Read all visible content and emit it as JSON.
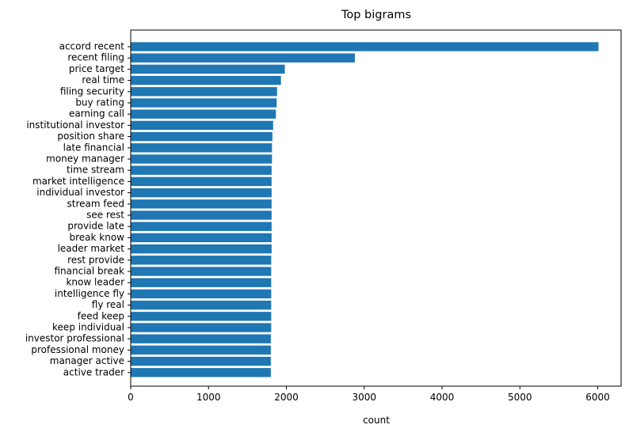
{
  "chart_data": {
    "type": "bar",
    "orientation": "horizontal",
    "title": "Top bigrams",
    "xlabel": "count",
    "ylabel": "",
    "xlim": [
      0,
      6300
    ],
    "xticks": [
      0,
      1000,
      2000,
      3000,
      4000,
      5000,
      6000
    ],
    "grid": false,
    "legend": "none",
    "bar_color": "#1f77b4",
    "categories": [
      "accord recent",
      "recent filing",
      "price target",
      "real time",
      "filing security",
      "buy rating",
      "earning call",
      "institutional investor",
      "position share",
      "late financial",
      "money manager",
      "time stream",
      "market intelligence",
      "individual investor",
      "stream feed",
      "see rest",
      "provide late",
      "break know",
      "leader market",
      "rest provide",
      "financial break",
      "know leader",
      "intelligence fly",
      "fly real",
      "feed keep",
      "keep individual",
      "investor professional",
      "professional money",
      "manager active",
      "active trader"
    ],
    "values": [
      6010,
      2880,
      1980,
      1930,
      1880,
      1875,
      1865,
      1830,
      1820,
      1815,
      1815,
      1810,
      1810,
      1810,
      1810,
      1810,
      1810,
      1810,
      1810,
      1805,
      1805,
      1805,
      1805,
      1805,
      1805,
      1805,
      1800,
      1800,
      1800,
      1800
    ]
  }
}
